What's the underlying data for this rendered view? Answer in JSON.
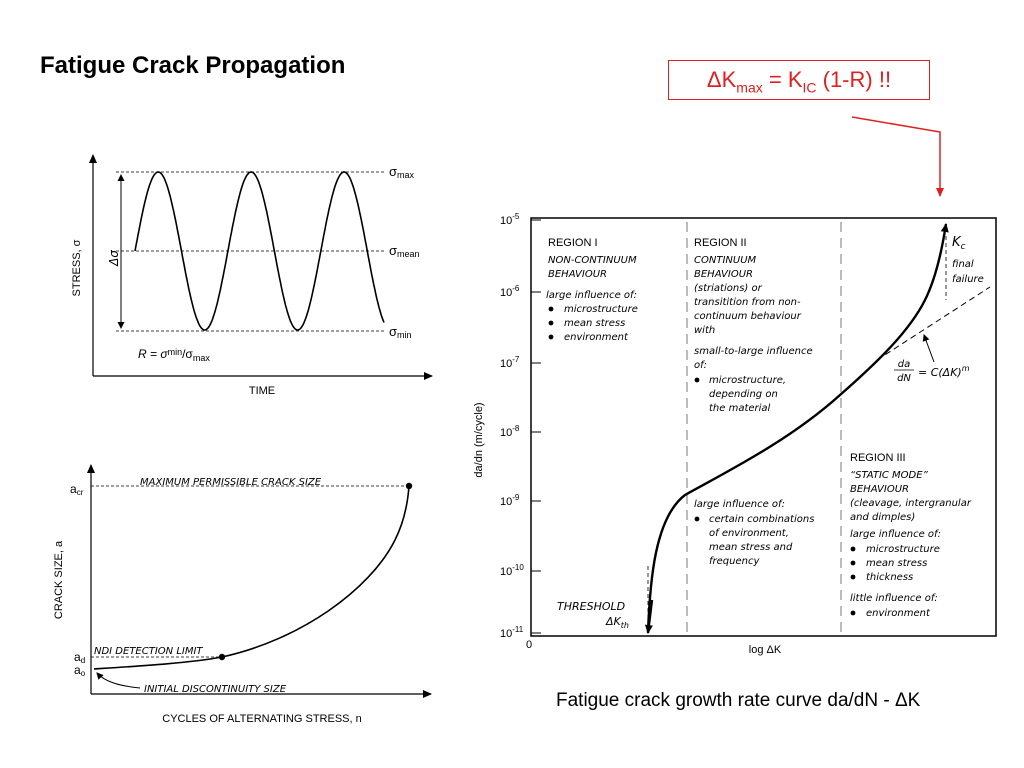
{
  "title": "Fatigue Crack Propagation",
  "callout": {
    "delta": "ΔK",
    "sub1": "max",
    "mid": " = K",
    "sub2": "IC",
    "tail": " (1-R) !!",
    "color": "#e02020"
  },
  "caption": "Fatigue crack growth rate curve da/dN - ΔK",
  "stress_plot": {
    "ylabel": "STRESS, σ",
    "xlabel": "TIME",
    "smax": "σ",
    "smax_sub": "max",
    "smean": "σ",
    "smean_sub": "mean",
    "smin": "σ",
    "smin_sub": "min",
    "delta_sigma": "Δσ",
    "r_prefix": "R = σ",
    "r_sub1": "min",
    "r_slash": "/σ",
    "r_sub2": "max"
  },
  "crack_plot": {
    "ylabel": "CRACK SIZE, a",
    "xlabel": "CYCLES OF ALTERNATING STRESS, n",
    "acr": "a",
    "acr_sub": "cr",
    "ad": "a",
    "ad_sub": "d",
    "ao": "a",
    "ao_sub": "o",
    "max_label": "MAXIMUM PERMISSIBLE CRACK SIZE",
    "ndi_label": "NDI DETECTION LIMIT",
    "init_label": "INITIAL DISCONTINUITY SIZE"
  },
  "growth_plot": {
    "ylabel": "da/dn  (m/cycle)",
    "xlabel": "log ΔK",
    "origin": "0",
    "yticks": [
      {
        "base": "10",
        "exp": "-5"
      },
      {
        "base": "10",
        "exp": "-6"
      },
      {
        "base": "10",
        "exp": "-7"
      },
      {
        "base": "10",
        "exp": "-8"
      },
      {
        "base": "10",
        "exp": "-9"
      },
      {
        "base": "10",
        "exp": "-10"
      },
      {
        "base": "10",
        "exp": "-11"
      }
    ],
    "region1": {
      "head": "REGION I",
      "sub1": "NON-CONTINUUM",
      "sub2": "BEHAVIOUR",
      "intro": "large influence of:",
      "items": [
        "microstructure",
        "mean stress",
        "environment"
      ]
    },
    "region2": {
      "head": "REGION II",
      "lines": [
        "CONTINUUM",
        "BEHAVIOUR",
        "(striations) or",
        "transitition from non-",
        "continuum behaviour",
        "with"
      ],
      "intro": "small-to-large influence",
      "intro2": "of:",
      "items": [
        "microstructure,",
        "depending on",
        "the material"
      ],
      "lower_intro": "large influence of:",
      "lower_items": [
        "certain combinations",
        "of environment,",
        "mean stress and",
        "frequency"
      ]
    },
    "region3": {
      "head": "REGION III",
      "lines": [
        "“STATIC MODE”",
        "BEHAVIOUR",
        "(cleavage, intergranular",
        "and dimples)"
      ],
      "intro": "large influence of:",
      "items": [
        "microstructure",
        "mean stress",
        "thickness"
      ],
      "intro2": "little influence of:",
      "items2": [
        "environment"
      ]
    },
    "threshold1": "THRESHOLD",
    "threshold2": "ΔK",
    "threshold2_sub": "th",
    "kc": "K",
    "kc_sub": "c",
    "final1": "final",
    "final2": "failure",
    "paris_num": "da",
    "paris_den": "dN",
    "paris_rhs": "= C(ΔK)",
    "paris_exp": "m"
  }
}
